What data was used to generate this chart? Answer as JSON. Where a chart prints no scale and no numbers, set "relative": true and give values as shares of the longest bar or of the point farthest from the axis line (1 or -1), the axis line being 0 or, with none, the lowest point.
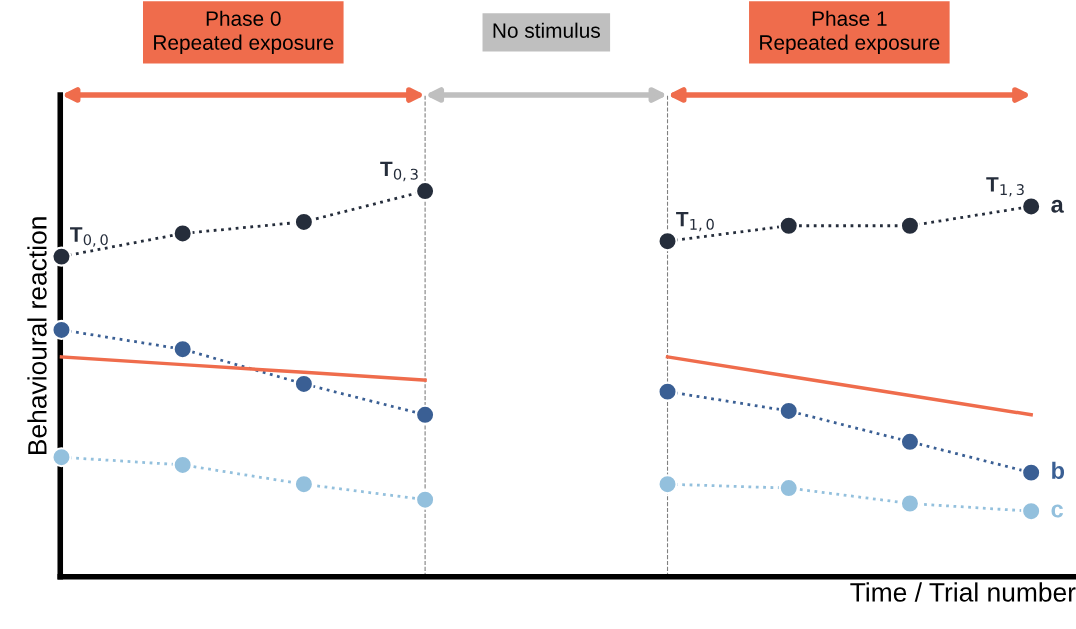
{
  "chart_data": {
    "type": "line",
    "relative": true,
    "xlabel": "Time / Trial number",
    "ylabel": "Behavioural reaction",
    "categories": [
      null,
      null,
      null,
      null,
      null,
      null,
      null,
      null,
      null
    ],
    "series": [
      {
        "color": "#252d3b",
        "values": [
          0.83,
          0.89,
          0.92,
          1.0,
          null,
          null,
          null,
          null,
          null
        ],
        "marker": "circle",
        "line_style": "dotted"
      },
      {
        "name": "a",
        "color": "#252d3b",
        "values": [
          null,
          null,
          null,
          null,
          null,
          0.87,
          0.91,
          0.91,
          0.96
        ],
        "marker": "circle",
        "line_style": "dotted"
      },
      {
        "color": "#3a5f94",
        "values": [
          0.64,
          0.59,
          0.5,
          0.42,
          null,
          null,
          null,
          null,
          null
        ],
        "marker": "circle",
        "line_style": "dotted"
      },
      {
        "name": "b",
        "color": "#3a5f94",
        "values": [
          null,
          null,
          null,
          null,
          null,
          0.48,
          0.43,
          0.35,
          0.27
        ],
        "marker": "circle",
        "line_style": "dotted"
      },
      {
        "color": "#93c0dd",
        "values": [
          0.31,
          0.29,
          0.24,
          0.2,
          null,
          null,
          null,
          null,
          null
        ],
        "marker": "circle",
        "line_style": "dotted"
      },
      {
        "name": "c",
        "color": "#93c0dd",
        "values": [
          null,
          null,
          null,
          null,
          null,
          0.24,
          0.23,
          0.19,
          0.17
        ],
        "marker": "circle",
        "line_style": "dotted"
      },
      {
        "color": "#ef6c4c",
        "values": [
          0.57,
          0.55,
          0.53,
          0.51,
          null,
          null,
          null,
          null,
          null
        ],
        "marker": "none",
        "line_style": "solid"
      },
      {
        "color": "#ef6c4c",
        "values": [
          null,
          null,
          null,
          null,
          null,
          0.57,
          0.52,
          0.47,
          0.42
        ],
        "marker": "none",
        "line_style": "solid"
      }
    ],
    "annotations": [
      "Phase 0\nRepeated exposure",
      "No stimulus",
      "Phase 1\nRepeated exposure",
      "T$_{0,0}$",
      "T$_{0,3}$",
      "T$_{1,0}$",
      "T$_{1,3}$"
    ],
    "grid": false,
    "legend": false,
    "tick_labels": false
  }
}
